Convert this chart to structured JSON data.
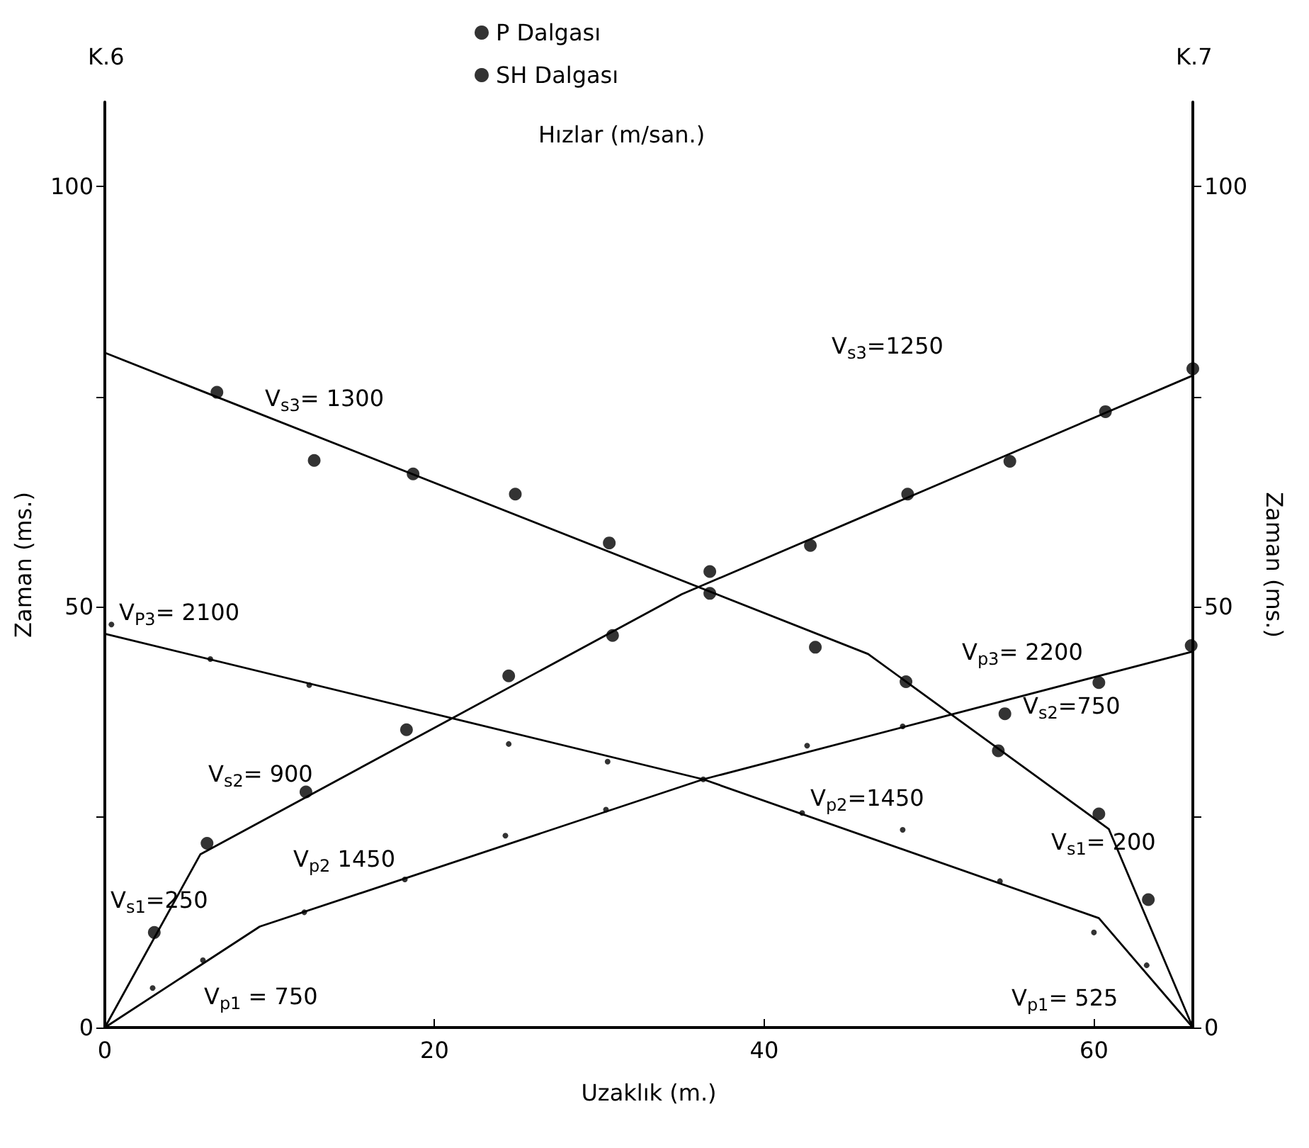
{
  "chart_data": {
    "type": "scatter",
    "xlabel": "Uzaklık (m.)",
    "ylabel": "Zaman (ms.)",
    "y2label": "Zaman (ms.)",
    "xlim": [
      0,
      66
    ],
    "xticks": [
      0,
      20,
      40,
      60
    ],
    "ylim": [
      0,
      110
    ],
    "yticks": [
      0,
      {
        "value": 25,
        "label": null
      },
      50,
      {
        "value": 75,
        "label": null
      },
      100
    ],
    "y2lim": [
      0,
      110
    ],
    "y2ticks": [
      0,
      {
        "value": 25,
        "label": null
      },
      50,
      {
        "value": 75,
        "label": null
      },
      100
    ],
    "grid": false,
    "legend": "top",
    "series": [
      {
        "name": "P Dalgası",
        "marker": "circle",
        "color": "#000000",
        "x": [
          2.9,
          5.95,
          12.1,
          18.2,
          24.3,
          30.4,
          36.3,
          42.6,
          48.4,
          0.4,
          6.4,
          12.4,
          24.5,
          30.5,
          42.3,
          48.4,
          54.3,
          60.0,
          63.2
        ],
        "values": [
          4.7,
          8.0,
          13.7,
          17.6,
          22.8,
          25.9,
          29.5,
          33.5,
          35.8,
          47.9,
          43.8,
          40.7,
          33.7,
          31.6,
          25.5,
          23.5,
          17.4,
          11.3,
          7.4
        ]
      },
      {
        "name": "SH Dalgası",
        "marker": "circle",
        "color": "#000000",
        "x": [
          3.0,
          6.2,
          12.2,
          18.3,
          24.5,
          30.8,
          36.7,
          42.8,
          48.7,
          54.9,
          60.7,
          66,
          6.8,
          12.7,
          18.7,
          24.9,
          30.6,
          36.7,
          43.1,
          48.6,
          54.2,
          60.3,
          63.3,
          54.6,
          60.3,
          65.9
        ],
        "values": [
          11.3,
          21.9,
          28.0,
          35.4,
          41.8,
          46.6,
          54.2,
          57.3,
          63.4,
          67.3,
          73.2,
          78.3,
          75.5,
          67.4,
          65.8,
          63.4,
          57.6,
          51.6,
          45.2,
          41.1,
          32.9,
          25.4,
          15.2,
          37.3,
          41.0,
          45.4
        ]
      },
      {
        "type": "line",
        "marker": "none",
        "line_style": "solid",
        "color": "#000000",
        "x": [
          0,
          9.4,
          36.3,
          66
        ],
        "values": [
          0,
          12.0,
          29.5,
          44.7
        ]
      },
      {
        "type": "line",
        "marker": "none",
        "line_style": "solid",
        "color": "#000000",
        "x": [
          0,
          36.3,
          60.3,
          66
        ],
        "values": [
          46.8,
          29.5,
          13.0,
          0
        ]
      },
      {
        "type": "line",
        "marker": "none",
        "line_style": "solid",
        "color": "#000000",
        "x": [
          0,
          5.8,
          35,
          66
        ],
        "values": [
          0,
          20.6,
          51.5,
          77.5
        ]
      },
      {
        "type": "line",
        "marker": "none",
        "line_style": "solid",
        "color": "#000000",
        "x": [
          0,
          46.3,
          60.9,
          66
        ],
        "values": [
          80.2,
          44.4,
          23.6,
          0
        ]
      }
    ],
    "annotations": [
      "K.6",
      "K.7",
      "Hızlar (m/san.)",
      "V$_{s3}$= 1300",
      "V$_{s3}$=1250",
      "V$_{P3}$= 2100",
      "V$_{s2}$= 900",
      "V$_{p3}$= 2200",
      "V$_{s2}$=750",
      "V$_{p2}$=1450",
      "V$_{s1}$= 200",
      "V$_{s1}$=250",
      "V$_{p2}$ 1450",
      "V$_{p1}$ = 750",
      "V$_{p1}$= 525"
    ]
  }
}
